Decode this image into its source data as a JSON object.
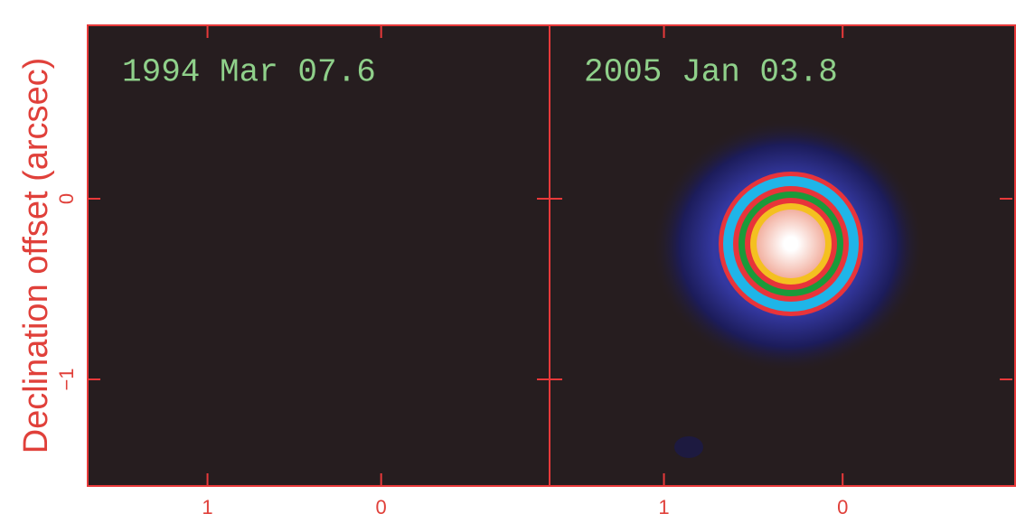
{
  "chart_data": [
    {
      "type": "image",
      "title": "1994 Mar 07.6",
      "y_label": "Declination offset (arcsec)",
      "xlim": [
        1.69,
        -0.97
      ],
      "xticks": [
        1,
        0
      ],
      "ylim": [
        -1.59,
        0.96
      ],
      "yticks": [
        {
          "value": -1,
          "label": "−1"
        },
        0
      ]
    },
    {
      "type": "image",
      "title": "2005 Jan 03.8",
      "xlim": [
        1.64,
        -0.95
      ],
      "xticks": [
        1,
        0
      ],
      "ylim": [
        -1.59,
        0.96
      ],
      "yticks": [
        -1,
        0
      ]
    }
  ]
}
